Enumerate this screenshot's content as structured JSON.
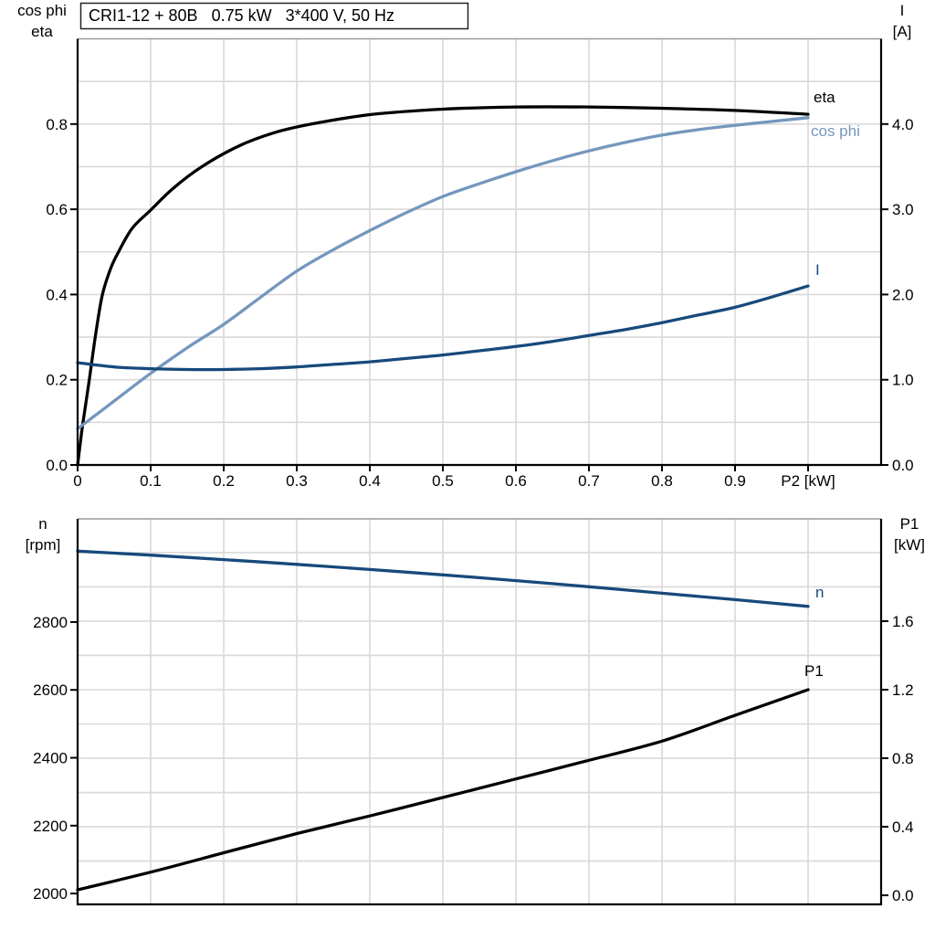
{
  "title_box": {
    "text": "CRI1-12 + 80B   0.75 kW   3*400 V, 50 Hz"
  },
  "colors": {
    "black": "#000000",
    "light_blue": "#7497BD",
    "dark_blue": "#17497B",
    "grid": "#D9D9D9",
    "border_gray": "#9A9A9A",
    "axis": "#000000",
    "background": "#FFFFFF"
  },
  "chart_data": [
    {
      "id": "motor-efficiency-chart",
      "type": "line",
      "title": "CRI1-12 + 80B   0.75 kW   3*400 V, 50 Hz",
      "x_axis": {
        "label": "P2 [kW]",
        "min": 0,
        "max": 1.1,
        "grid_step": 0.1,
        "axis_label_value": 1.0,
        "tick_values": [
          0,
          0.1,
          0.2,
          0.3,
          0.4,
          0.5,
          0.6,
          0.7,
          0.8,
          0.9
        ],
        "tick_labels": [
          "0",
          "0.1",
          "0.2",
          "0.3",
          "0.4",
          "0.5",
          "0.6",
          "0.7",
          "0.8",
          "0.9"
        ]
      },
      "left_axis": {
        "label_lines": [
          "cos phi",
          "eta"
        ],
        "min": 0,
        "max": 1.0,
        "grid_step": 0.1,
        "tick_values": [
          0,
          0.2,
          0.4,
          0.6,
          0.8
        ],
        "tick_labels": [
          "0.0",
          "0.2",
          "0.4",
          "0.6",
          "0.8"
        ]
      },
      "right_axis": {
        "label_lines": [
          "I",
          "[A]"
        ],
        "min": 0,
        "max": 5.0,
        "grid_step": 0.5,
        "tick_values": [
          0,
          1,
          2,
          3,
          4
        ],
        "tick_labels": [
          "0.0",
          "1.0",
          "2.0",
          "3.0",
          "4.0"
        ]
      },
      "series": [
        {
          "name": "eta",
          "axis": "left",
          "color_key": "black",
          "points": [
            [
              0,
              0
            ],
            [
              0.005,
              0.07
            ],
            [
              0.01,
              0.13
            ],
            [
              0.016,
              0.2
            ],
            [
              0.025,
              0.31
            ],
            [
              0.034,
              0.4
            ],
            [
              0.045,
              0.46
            ],
            [
              0.056,
              0.5
            ],
            [
              0.075,
              0.556
            ],
            [
              0.1,
              0.598
            ],
            [
              0.13,
              0.648
            ],
            [
              0.17,
              0.7
            ],
            [
              0.22,
              0.748
            ],
            [
              0.27,
              0.78
            ],
            [
              0.32,
              0.8
            ],
            [
              0.4,
              0.822
            ],
            [
              0.5,
              0.835
            ],
            [
              0.6,
              0.84
            ],
            [
              0.7,
              0.84
            ],
            [
              0.8,
              0.837
            ],
            [
              0.9,
              0.832
            ],
            [
              1.0,
              0.823
            ]
          ]
        },
        {
          "name": "cos phi",
          "axis": "left",
          "color_key": "light_blue",
          "points": [
            [
              0,
              0.085
            ],
            [
              0.05,
              0.15
            ],
            [
              0.1,
              0.215
            ],
            [
              0.15,
              0.275
            ],
            [
              0.2,
              0.33
            ],
            [
              0.25,
              0.393
            ],
            [
              0.3,
              0.455
            ],
            [
              0.35,
              0.505
            ],
            [
              0.4,
              0.55
            ],
            [
              0.45,
              0.592
            ],
            [
              0.5,
              0.63
            ],
            [
              0.55,
              0.66
            ],
            [
              0.6,
              0.688
            ],
            [
              0.65,
              0.714
            ],
            [
              0.7,
              0.737
            ],
            [
              0.75,
              0.757
            ],
            [
              0.8,
              0.774
            ],
            [
              0.85,
              0.787
            ],
            [
              0.9,
              0.797
            ],
            [
              0.95,
              0.806
            ],
            [
              1.0,
              0.815
            ]
          ]
        },
        {
          "name": "I",
          "axis": "right",
          "color_key": "dark_blue",
          "points": [
            [
              0,
              1.2
            ],
            [
              0.05,
              1.15
            ],
            [
              0.1,
              1.13
            ],
            [
              0.15,
              1.12
            ],
            [
              0.2,
              1.12
            ],
            [
              0.25,
              1.13
            ],
            [
              0.3,
              1.15
            ],
            [
              0.35,
              1.18
            ],
            [
              0.4,
              1.21
            ],
            [
              0.45,
              1.25
            ],
            [
              0.5,
              1.29
            ],
            [
              0.55,
              1.34
            ],
            [
              0.6,
              1.39
            ],
            [
              0.65,
              1.45
            ],
            [
              0.7,
              1.52
            ],
            [
              0.75,
              1.59
            ],
            [
              0.8,
              1.67
            ],
            [
              0.85,
              1.76
            ],
            [
              0.9,
              1.85
            ],
            [
              0.95,
              1.97
            ],
            [
              1.0,
              2.1
            ]
          ]
        }
      ]
    },
    {
      "id": "speed-power-chart",
      "type": "line",
      "title": "",
      "x_axis": {
        "label": "",
        "min": 0,
        "max": 1.1,
        "grid_step": 0.1,
        "tick_values": [],
        "tick_labels": []
      },
      "left_axis": {
        "label_lines": [
          "n",
          "[rpm]"
        ],
        "min": 1968,
        "max": 3104,
        "grid_step": 100,
        "tick_values": [
          2000,
          2200,
          2400,
          2600,
          2800
        ],
        "tick_labels": [
          "2000",
          "2200",
          "2400",
          "2600",
          "2800"
        ]
      },
      "right_axis": {
        "label_lines": [
          "P1",
          "[kW]"
        ],
        "min": -0.053,
        "max": 2.197,
        "grid_step": 0.2,
        "tick_values": [
          0,
          0.4,
          0.8,
          1.2,
          1.6
        ],
        "tick_labels": [
          "0.0",
          "0.4",
          "0.8",
          "1.2",
          "1.6"
        ]
      },
      "series": [
        {
          "name": "n",
          "axis": "left",
          "color_key": "dark_blue",
          "points": [
            [
              0,
              3009
            ],
            [
              0.1,
              2997
            ],
            [
              0.2,
              2984
            ],
            [
              0.3,
              2970
            ],
            [
              0.4,
              2955
            ],
            [
              0.5,
              2939
            ],
            [
              0.6,
              2922
            ],
            [
              0.7,
              2904
            ],
            [
              0.8,
              2885
            ],
            [
              0.9,
              2866
            ],
            [
              1.0,
              2846
            ]
          ]
        },
        {
          "name": "P1",
          "axis": "right",
          "color_key": "black",
          "points": [
            [
              0,
              0.032
            ],
            [
              0.1,
              0.135
            ],
            [
              0.2,
              0.248
            ],
            [
              0.3,
              0.36
            ],
            [
              0.4,
              0.463
            ],
            [
              0.5,
              0.571
            ],
            [
              0.6,
              0.679
            ],
            [
              0.7,
              0.788
            ],
            [
              0.8,
              0.9
            ],
            [
              0.9,
              1.05
            ],
            [
              1.0,
              1.2
            ]
          ]
        }
      ]
    }
  ]
}
